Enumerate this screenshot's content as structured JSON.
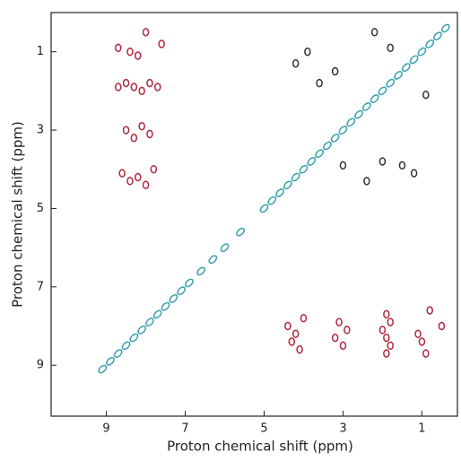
{
  "chart_data": {
    "type": "scatter",
    "x_label": "Proton chemical shift (ppm)",
    "y_label": "Proton chemical shift (ppm)",
    "xlim": [
      0.1,
      10.4
    ],
    "ylim": [
      0,
      10.3
    ],
    "x_inverted": true,
    "y_inverted": true,
    "xticks": [
      9,
      7,
      5,
      3,
      1
    ],
    "yticks": [
      1,
      3,
      5,
      7,
      9
    ],
    "series": [
      {
        "color": "#3a9fb0",
        "x": [
          9.1,
          8.9,
          8.7,
          8.5,
          8.3,
          8.1,
          7.9,
          7.7,
          7.5,
          7.3,
          7.1,
          6.9,
          6.6,
          6.3,
          6.0,
          5.6,
          5.0,
          4.8,
          4.6,
          4.4,
          4.2,
          4.0,
          3.8,
          3.6,
          3.4,
          3.2,
          3.0,
          2.8,
          2.6,
          2.4,
          2.2,
          2.0,
          1.8,
          1.6,
          1.4,
          1.2,
          1.0,
          0.8,
          0.6,
          0.4
        ],
        "y": [
          9.1,
          8.9,
          8.7,
          8.5,
          8.3,
          8.1,
          7.9,
          7.7,
          7.5,
          7.3,
          7.1,
          6.9,
          6.6,
          6.3,
          6.0,
          5.6,
          5.0,
          4.8,
          4.6,
          4.4,
          4.2,
          4.0,
          3.8,
          3.6,
          3.4,
          3.2,
          3.0,
          2.8,
          2.6,
          2.4,
          2.2,
          2.0,
          1.8,
          1.6,
          1.4,
          1.2,
          1.0,
          0.8,
          0.6,
          0.4
        ]
      },
      {
        "color": "#b0283c",
        "x": [
          8.7,
          8.5,
          8.3,
          8.1,
          7.9,
          7.7,
          8.6,
          8.4,
          8.2,
          8.0,
          7.8,
          8.5,
          8.3,
          8.1,
          7.9,
          8.7,
          8.4,
          8.2,
          7.6,
          8.0
        ],
        "y": [
          1.9,
          1.8,
          1.9,
          2.0,
          1.8,
          1.9,
          4.1,
          4.3,
          4.2,
          4.4,
          4.0,
          3.0,
          3.2,
          2.9,
          3.1,
          0.9,
          1.0,
          1.1,
          0.8,
          0.5
        ]
      },
      {
        "color": "#b0283c",
        "x": [
          1.9,
          1.8,
          1.9,
          2.0,
          1.8,
          1.9,
          4.1,
          4.3,
          4.2,
          4.4,
          4.0,
          3.0,
          3.2,
          2.9,
          3.1,
          0.9,
          1.0,
          1.1,
          0.8,
          0.5
        ],
        "y": [
          8.7,
          8.5,
          8.3,
          8.1,
          7.9,
          7.7,
          8.6,
          8.4,
          8.2,
          8.0,
          7.8,
          8.5,
          8.3,
          8.1,
          7.9,
          8.7,
          8.4,
          8.2,
          7.6,
          8.0
        ]
      },
      {
        "color": "#333333",
        "x": [
          3.6,
          3.2,
          2.4,
          2.0,
          1.5,
          1.2,
          0.9,
          3.9,
          4.2,
          1.8,
          2.2,
          3.0
        ],
        "y": [
          1.8,
          1.5,
          4.3,
          3.8,
          3.9,
          4.1,
          2.1,
          1.0,
          1.3,
          0.9,
          0.5,
          3.9
        ]
      }
    ]
  }
}
